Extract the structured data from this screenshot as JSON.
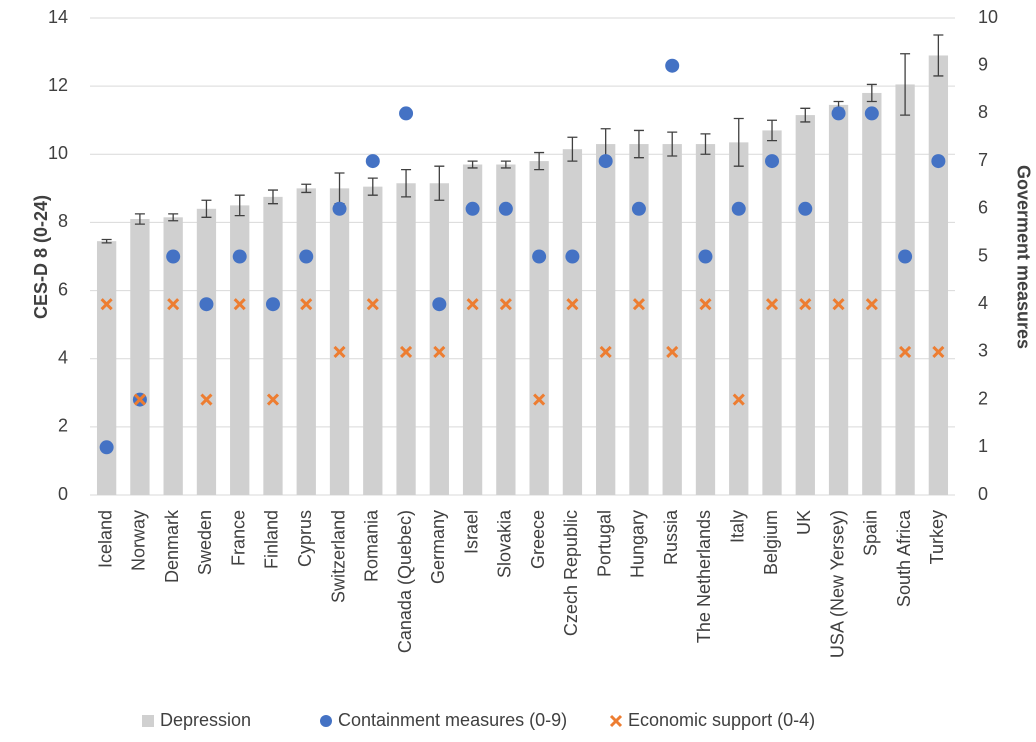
{
  "chart_data": {
    "type": "bar",
    "categories": [
      "Iceland",
      "Norway",
      "Denmark",
      "Sweden",
      "France",
      "Finland",
      "Cyprus",
      "Switzerland",
      "Romania",
      "Canada (Quebec)",
      "Germany",
      "Israel",
      "Slovakia",
      "Greece",
      "Czech Republic",
      "Portugal",
      "Hungary",
      "Russia",
      "The Netherlands",
      "Italy",
      "Belgium",
      "UK",
      "USA (New Yersey)",
      "Spain",
      "South Africa",
      "Turkey"
    ],
    "series": [
      {
        "name": "Depression",
        "color": "#d0d0d0",
        "marker": "bar",
        "values": [
          7.45,
          8.1,
          8.15,
          8.4,
          8.5,
          8.75,
          9.0,
          9.0,
          9.05,
          9.15,
          9.15,
          9.7,
          9.7,
          9.8,
          10.15,
          10.3,
          10.3,
          10.3,
          10.3,
          10.35,
          10.7,
          11.15,
          11.45,
          11.8,
          12.05,
          12.9
        ],
        "errors": [
          0.05,
          0.15,
          0.1,
          0.25,
          0.3,
          0.2,
          0.12,
          0.45,
          0.25,
          0.4,
          0.5,
          0.1,
          0.1,
          0.25,
          0.35,
          0.45,
          0.4,
          0.35,
          0.3,
          0.7,
          0.3,
          0.2,
          0.1,
          0.25,
          0.9,
          0.6
        ]
      },
      {
        "name": "Containment measures (0-9)",
        "color": "#4472c4",
        "marker": "circle",
        "axis": "y2",
        "values": [
          1,
          2,
          5,
          4,
          5,
          4,
          5,
          6,
          7,
          8,
          4,
          6,
          6,
          5,
          5,
          7,
          6,
          9,
          5,
          6,
          7,
          6,
          8,
          8,
          5,
          7
        ]
      },
      {
        "name": "Economic support (0-4)",
        "color": "#ed7d31",
        "marker": "x",
        "axis": "y2",
        "values": [
          4,
          2,
          4,
          2,
          4,
          2,
          4,
          3,
          4,
          3,
          3,
          4,
          4,
          2,
          4,
          3,
          4,
          3,
          4,
          2,
          4,
          4,
          4,
          4,
          3,
          3
        ]
      }
    ],
    "y_label": "CES-D 8 (0-24)",
    "y2_label": "Goverment measures",
    "ylim": [
      0,
      14
    ],
    "yticks": [
      0,
      2,
      4,
      6,
      8,
      10,
      12,
      14
    ],
    "y2lim": [
      0,
      10
    ],
    "y2ticks": [
      0,
      1,
      2,
      3,
      4,
      5,
      6,
      7,
      8,
      9,
      10
    ],
    "grid": true,
    "legend": "bottom"
  }
}
